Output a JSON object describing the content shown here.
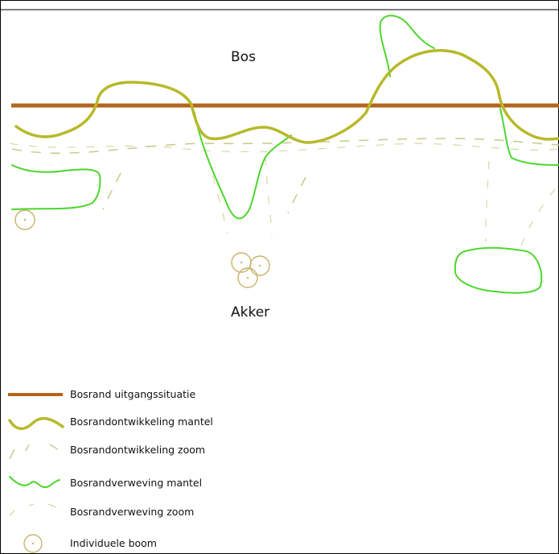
{
  "labels": {
    "forest": "Bos",
    "field": "Akker"
  },
  "legend": {
    "items": [
      {
        "key": "bosrand",
        "label": "Bosrand uitgangssituatie"
      },
      {
        "key": "ontw_mantel",
        "label": "Bosrandontwikkeling mantel"
      },
      {
        "key": "ontw_zoom",
        "label": "Bosrandontwikkeling zoom"
      },
      {
        "key": "verw_mantel",
        "label": "Bosrandverweving mantel"
      },
      {
        "key": "verw_zoom",
        "label": "Bosrandverweving zoom"
      },
      {
        "key": "boom",
        "label": "Individuele boom"
      }
    ]
  },
  "colors": {
    "bosrand": "#b5651d",
    "ontwikkeling": "#b7b92a",
    "verweving": "#4cd62c",
    "zoom_dash": "#c9c98a",
    "boom": "#c8b46a",
    "frame": "#000000"
  }
}
